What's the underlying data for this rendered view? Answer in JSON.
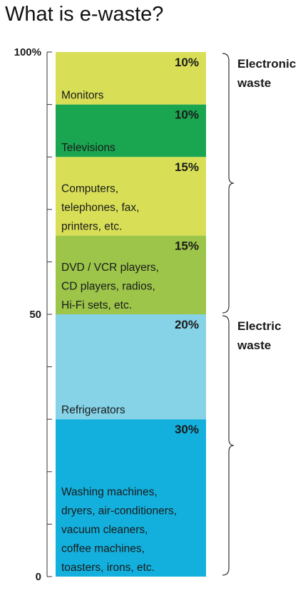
{
  "title": "What is e-waste?",
  "chart_data": {
    "type": "bar",
    "stacked": true,
    "ylim": [
      0,
      100
    ],
    "y_tick_labels": [
      {
        "value": 0,
        "label": "0"
      },
      {
        "value": 50,
        "label": "50"
      },
      {
        "value": 100,
        "label": "100%"
      }
    ],
    "minor_ticks_every": 10,
    "segments": [
      {
        "name": "Washing machines, dryers, air-conditioners, vacuum cleaners, coffee machines, toasters, irons, etc.",
        "lines": [
          "Washing machines,",
          "dryers, air-conditioners,",
          "vacuum cleaners,",
          "coffee machines,",
          "toasters, irons, etc."
        ],
        "value": 30,
        "percent_label": "30%",
        "color": "#13b0dd"
      },
      {
        "name": "Refrigerators",
        "lines": [
          "Refrigerators"
        ],
        "value": 20,
        "percent_label": "20%",
        "color": "#86d3e8"
      },
      {
        "name": "DVD / VCR players, CD players, radios, Hi-Fi sets, etc.",
        "lines": [
          "DVD / VCR players,",
          "CD players, radios,",
          "Hi-Fi sets, etc."
        ],
        "value": 15,
        "percent_label": "15%",
        "color": "#9cc54a"
      },
      {
        "name": "Computers, telephones, fax, printers, etc.",
        "lines": [
          "Computers,",
          "telephones, fax,",
          "printers, etc."
        ],
        "value": 15,
        "percent_label": "15%",
        "color": "#d8df56"
      },
      {
        "name": "Televisions",
        "lines": [
          "Televisions"
        ],
        "value": 10,
        "percent_label": "10%",
        "color": "#1aa651"
      },
      {
        "name": "Monitors",
        "lines": [
          "Monitors"
        ],
        "value": 10,
        "percent_label": "10%",
        "color": "#d8df56"
      }
    ],
    "groups": [
      {
        "label_lines": [
          "Electronic",
          "waste"
        ],
        "from": 50,
        "to": 100
      },
      {
        "label_lines": [
          "Electric",
          "waste"
        ],
        "from": 0,
        "to": 50
      }
    ]
  }
}
